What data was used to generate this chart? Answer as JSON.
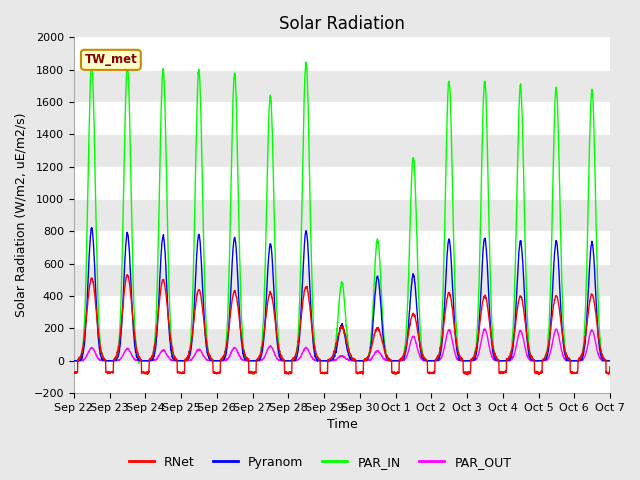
{
  "title": "Solar Radiation",
  "ylabel": "Solar Radiation (W/m2, uE/m2/s)",
  "xlabel": "Time",
  "ylim": [
    -200,
    2000
  ],
  "yticks": [
    -200,
    0,
    200,
    400,
    600,
    800,
    1000,
    1200,
    1400,
    1600,
    1800,
    2000
  ],
  "xlabels": [
    "Sep 22",
    "Sep 23",
    "Sep 24",
    "Sep 25",
    "Sep 26",
    "Sep 27",
    "Sep 28",
    "Sep 29",
    "Sep 30",
    "Oct 1",
    "Oct 2",
    "Oct 3",
    "Oct 4",
    "Oct 5",
    "Oct 6",
    "Oct 7"
  ],
  "legend_label": "TW_met",
  "colors": {
    "RNet": "#ff0000",
    "Pyranom": "#0000ff",
    "PAR_IN": "#00ff00",
    "PAR_OUT": "#ff00ff"
  },
  "line_width": 1.0,
  "bg_color": "#e8e8e8",
  "grid_color": "#ffffff",
  "title_fontsize": 12,
  "axis_fontsize": 9,
  "tick_fontsize": 8,
  "par_in_peaks": [
    1840,
    1820,
    1800,
    1800,
    1780,
    1640,
    1850,
    480,
    750,
    1260,
    1730,
    1730,
    1700,
    1690,
    1680
  ],
  "pyranom_peaks": [
    820,
    790,
    770,
    780,
    760,
    720,
    800,
    220,
    520,
    530,
    750,
    760,
    740,
    740,
    730
  ],
  "rnet_peaks": [
    510,
    530,
    500,
    440,
    430,
    420,
    460,
    210,
    200,
    290,
    420,
    400,
    400,
    400,
    410
  ],
  "par_out_peaks": [
    80,
    75,
    65,
    70,
    80,
    90,
    80,
    30,
    60,
    150,
    190,
    195,
    185,
    195,
    190
  ],
  "rnet_night": -75
}
